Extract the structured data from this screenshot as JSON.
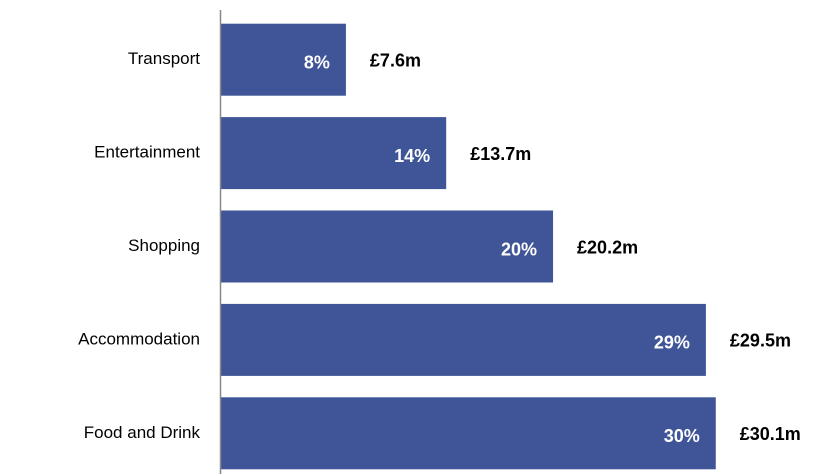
{
  "chart_data": {
    "type": "bar",
    "orientation": "horizontal",
    "categories": [
      "Transport",
      "Entertainment",
      "Shopping",
      "Accommodation",
      "Food and Drink"
    ],
    "values": [
      7.6,
      13.7,
      20.2,
      29.5,
      30.1
    ],
    "value_labels": [
      "£7.6m",
      "£13.7m",
      "£20.2m",
      "£29.5m",
      "£30.1m"
    ],
    "share_values": [
      8,
      14,
      20,
      29,
      30
    ],
    "share_labels": [
      "8%",
      "14%",
      "20%",
      "29%",
      "30%"
    ],
    "color": "#3f5597",
    "xlim": [
      0,
      32
    ]
  }
}
